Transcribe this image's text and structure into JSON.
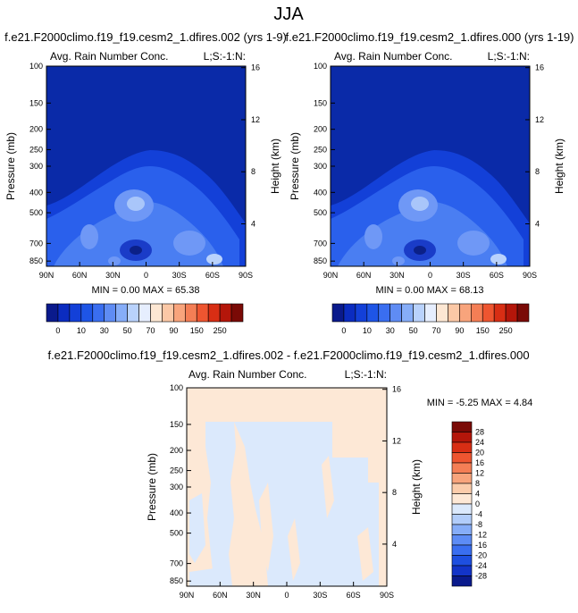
{
  "page": {
    "title": "JJA",
    "panel1_title": "f.e21.F2000climo.f19_f19.cesm2_1.dfires.002 (yrs 1-9)",
    "panel2_title": "f.e21.F2000climo.f19_f19.cesm2_1.dfires.000 (yrs 1-19)",
    "panel3_title": "f.e21.F2000climo.f19_f19.cesm2_1.dfires.002 - f.e21.F2000climo.f19_f19.cesm2_1.dfires.000"
  },
  "colors": {
    "abs_levels": [
      "#0a1a8c",
      "#0b2cc0",
      "#1340d8",
      "#1e55e6",
      "#3a6ef0",
      "#5f8cf4",
      "#86adf8",
      "#b9d2fc",
      "#e6eefe",
      "#fde7d3",
      "#fbc8a6",
      "#f8a47c",
      "#f47e55",
      "#ee5530",
      "#d82e14",
      "#b4160a",
      "#7a0a06"
    ],
    "diff_levels": [
      "#0a1a8c",
      "#1334c8",
      "#1e4fe0",
      "#3a6ef0",
      "#5d8cf5",
      "#86adf8",
      "#b2cdfa",
      "#dbe9fc",
      "#fde8d6",
      "#fbccab",
      "#f8a47c",
      "#f47e55",
      "#ee5530",
      "#d82e14",
      "#b4160a",
      "#7a0a06"
    ]
  },
  "chart_data": [
    {
      "type": "heatmap",
      "title": "Avg. Rain Number Conc.",
      "corner_label": "L;S:-1:N:",
      "x_ticks": [
        "90N",
        "60N",
        "30N",
        "0",
        "30S",
        "60S",
        "90S"
      ],
      "y_ticks": [
        "100",
        "150",
        "200",
        "250",
        "300",
        "400",
        "500",
        "700",
        "850"
      ],
      "y_ticks_right": [
        "16",
        "12",
        "8",
        "4"
      ],
      "ylabel": "Pressure (mb)",
      "ylabel_right": "Height (km)",
      "stats": "MIN =  0.00  MAX = 65.38",
      "colorbar_labels": [
        "0",
        "10",
        "30",
        "50",
        "70",
        "90",
        "150",
        "250"
      ],
      "shading_description": "dark blue above ~250 mb; lighter blues in mid-troposphere peaking near equator and 30S"
    },
    {
      "type": "heatmap",
      "title": "Avg. Rain Number Conc.",
      "corner_label": "L;S:-1:N:",
      "x_ticks": [
        "90N",
        "60N",
        "30N",
        "0",
        "30S",
        "60S",
        "90S"
      ],
      "y_ticks": [
        "100",
        "150",
        "200",
        "250",
        "300",
        "400",
        "500",
        "700",
        "850"
      ],
      "y_ticks_right": [
        "16",
        "12",
        "8",
        "4"
      ],
      "ylabel": "Pressure (mb)",
      "ylabel_right": "Height (km)",
      "stats": "MIN =  0.00  MAX = 68.13",
      "colorbar_labels": [
        "0",
        "10",
        "30",
        "50",
        "70",
        "90",
        "150",
        "250"
      ]
    },
    {
      "type": "heatmap",
      "title": "Avg. Rain Number Conc.",
      "corner_label": "L;S:-1:N:",
      "x_ticks": [
        "90N",
        "60N",
        "30N",
        "0",
        "30S",
        "60S",
        "90S"
      ],
      "y_ticks": [
        "100",
        "150",
        "200",
        "250",
        "300",
        "400",
        "500",
        "700",
        "850"
      ],
      "y_ticks_right": [
        "16",
        "12",
        "8",
        "4"
      ],
      "ylabel": "Pressure (mb)",
      "ylabel_right": "Height (km)",
      "stats": "MIN = -5.25  MAX =  4.84",
      "colorbar_labels": [
        "28",
        "24",
        "20",
        "16",
        "12",
        "8",
        "4",
        "0",
        "-4",
        "-8",
        "-12",
        "-16",
        "-20",
        "-24",
        "-28"
      ]
    }
  ]
}
